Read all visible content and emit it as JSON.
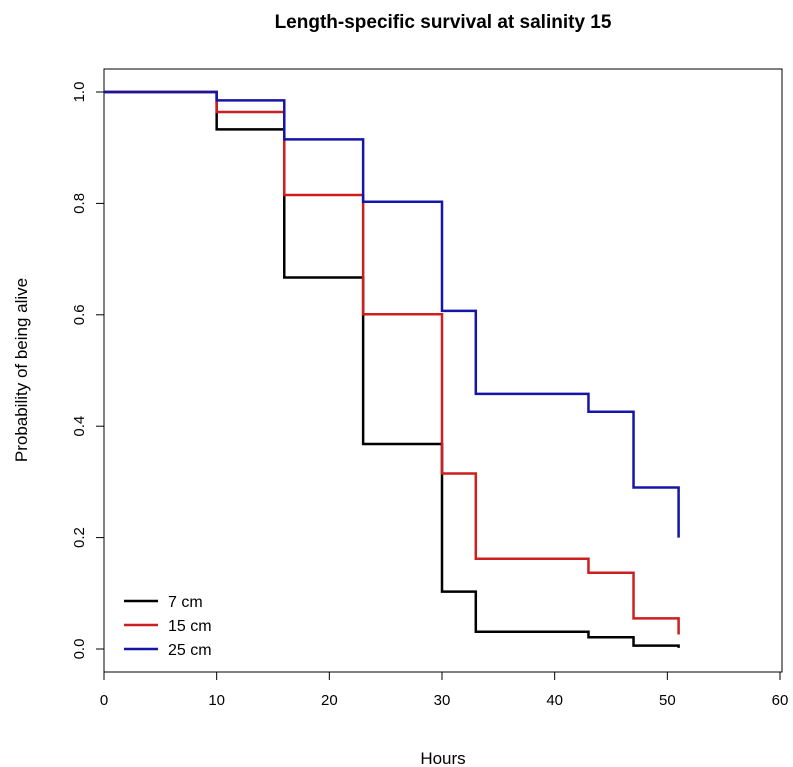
{
  "chart_data": {
    "type": "line",
    "step": true,
    "title": "Length-specific survival at salinity 15",
    "xlabel": "Hours",
    "ylabel": "Probability of being alive",
    "xlim": [
      0,
      60
    ],
    "ylim": [
      0,
      1
    ],
    "x_ticks": [
      0,
      10,
      20,
      30,
      40,
      50,
      60
    ],
    "y_ticks": [
      0.0,
      0.2,
      0.4,
      0.6,
      0.8,
      1.0
    ],
    "x_tick_labels": [
      "0",
      "10",
      "20",
      "30",
      "40",
      "50",
      "60"
    ],
    "y_tick_labels": [
      "0.0",
      "0.2",
      "0.4",
      "0.6",
      "0.8",
      "1.0"
    ],
    "grid": false,
    "legend_position": "bottom-left",
    "series": [
      {
        "name": "7 cm",
        "color": "#000000",
        "x": [
          0,
          10,
          16,
          23,
          30,
          33,
          43,
          47,
          51
        ],
        "y": [
          1.0,
          0.933,
          0.667,
          0.368,
          0.103,
          0.031,
          0.021,
          0.006,
          0.002
        ]
      },
      {
        "name": "15 cm",
        "color": "#cc1f1f",
        "x": [
          0,
          10,
          16,
          23,
          30,
          33,
          43,
          47,
          51
        ],
        "y": [
          1.0,
          0.964,
          0.815,
          0.601,
          0.315,
          0.162,
          0.137,
          0.055,
          0.026
        ]
      },
      {
        "name": "25 cm",
        "color": "#1515a8",
        "x": [
          0,
          10,
          16,
          23,
          30,
          33,
          43,
          47,
          51
        ],
        "y": [
          1.0,
          0.985,
          0.915,
          0.803,
          0.607,
          0.458,
          0.426,
          0.29,
          0.2
        ]
      }
    ]
  }
}
